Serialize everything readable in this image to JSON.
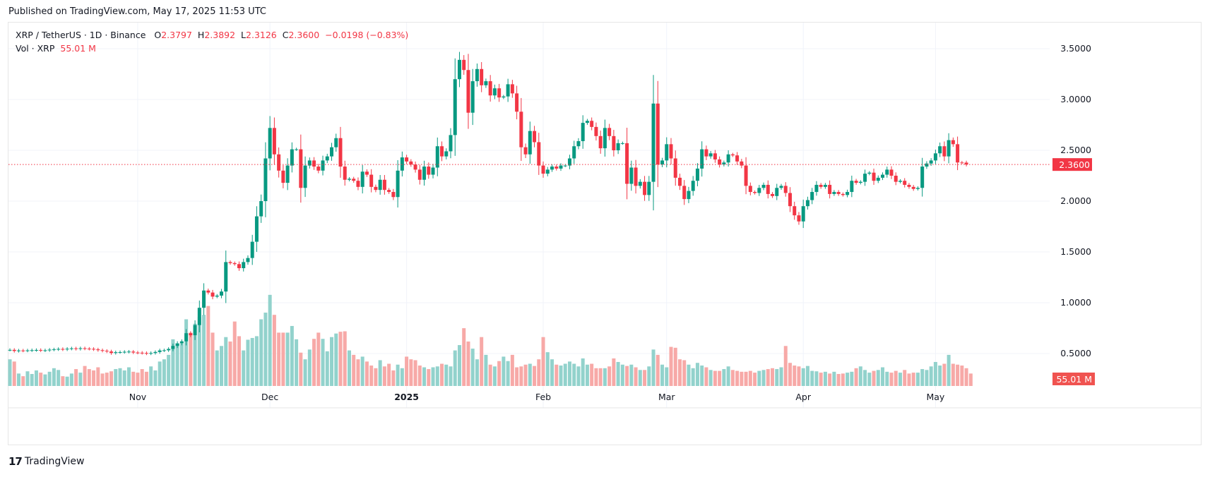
{
  "header": {
    "published": "Published on TradingView.com, May 17, 2025 11:53 UTC"
  },
  "legend": {
    "symbol": "XRP / TetherUS · 1D · Binance",
    "o_label": "O",
    "o_value": "2.3797",
    "h_label": "H",
    "h_value": "2.3892",
    "l_label": "L",
    "l_value": "2.3126",
    "c_label": "C",
    "c_value": "2.3600",
    "change": "−0.0198 (−0.83%)",
    "vol_label": "Vol · XRP",
    "vol_value": "55.01 M"
  },
  "footer": {
    "brand": "TradingView",
    "logo": "17"
  },
  "colors": {
    "up": "#089981",
    "down": "#f23645",
    "vol_up": "#92d2cc",
    "vol_down": "#f7a9a7",
    "grid": "#f0f3fa",
    "price_badge": "#f23645",
    "vol_badge": "#f05350"
  },
  "chart_data": {
    "type": "candlestick",
    "title": "XRP / TetherUS · 1D · Binance",
    "interval": "1D",
    "y_ticks": [
      "3.5000",
      "3.0000",
      "2.5000",
      "2.0000",
      "1.5000",
      "1.0000",
      "0.5000"
    ],
    "y_tick_values": [
      3.5,
      3.0,
      2.5,
      2.0,
      1.5,
      1.0,
      0.5
    ],
    "ylim": [
      0.35,
      3.6
    ],
    "x_ticks": [
      {
        "label": "Nov",
        "day": 29,
        "bold": false
      },
      {
        "label": "Dec",
        "day": 59,
        "bold": false
      },
      {
        "label": "2025",
        "day": 90,
        "bold": true
      },
      {
        "label": "Feb",
        "day": 121,
        "bold": false
      },
      {
        "label": "Mar",
        "day": 149,
        "bold": false
      },
      {
        "label": "Apr",
        "day": 180,
        "bold": false
      },
      {
        "label": "May",
        "day": 210,
        "bold": false
      }
    ],
    "last_price": "2.3600",
    "last_price_value": 2.36,
    "last_volume": "55.01 M",
    "closes": [
      0.536,
      0.525,
      0.53,
      0.528,
      0.531,
      0.533,
      0.535,
      0.53,
      0.532,
      0.538,
      0.541,
      0.545,
      0.54,
      0.547,
      0.551,
      0.545,
      0.552,
      0.548,
      0.546,
      0.541,
      0.533,
      0.527,
      0.52,
      0.505,
      0.513,
      0.514,
      0.517,
      0.519,
      0.51,
      0.508,
      0.505,
      0.5,
      0.505,
      0.515,
      0.53,
      0.532,
      0.545,
      0.575,
      0.6,
      0.62,
      0.7,
      0.68,
      0.78,
      0.95,
      1.12,
      1.1,
      1.06,
      1.07,
      1.11,
      1.4,
      1.39,
      1.38,
      1.34,
      1.4,
      1.44,
      1.6,
      1.85,
      2.0,
      2.42,
      2.72,
      2.46,
      2.3,
      2.18,
      2.35,
      2.51,
      2.51,
      2.13,
      2.35,
      2.4,
      2.34,
      2.3,
      2.4,
      2.44,
      2.53,
      2.62,
      2.34,
      2.21,
      2.22,
      2.2,
      2.14,
      2.29,
      2.26,
      2.14,
      2.11,
      2.21,
      2.11,
      2.09,
      2.04,
      2.3,
      2.43,
      2.39,
      2.36,
      2.31,
      2.21,
      2.34,
      2.26,
      2.33,
      2.54,
      2.44,
      2.49,
      2.65,
      3.2,
      3.39,
      3.29,
      2.87,
      3.18,
      3.3,
      3.14,
      3.18,
      3.04,
      3.11,
      3.02,
      3.03,
      3.15,
      3.06,
      2.88,
      2.53,
      2.46,
      2.69,
      2.58,
      2.35,
      2.27,
      2.31,
      2.34,
      2.32,
      2.35,
      2.35,
      2.42,
      2.54,
      2.59,
      2.77,
      2.79,
      2.73,
      2.64,
      2.52,
      2.72,
      2.64,
      2.5,
      2.57,
      2.57,
      2.17,
      2.33,
      2.15,
      2.19,
      2.06,
      2.19,
      2.96,
      2.36,
      2.4,
      2.56,
      2.42,
      2.23,
      2.15,
      2.02,
      2.1,
      2.2,
      2.32,
      2.51,
      2.44,
      2.47,
      2.41,
      2.36,
      2.38,
      2.46,
      2.45,
      2.39,
      2.35,
      2.15,
      2.09,
      2.08,
      2.13,
      2.16,
      2.07,
      2.05,
      2.13,
      2.15,
      2.08,
      1.95,
      1.86,
      1.8,
      1.95,
      2.01,
      2.09,
      2.16,
      2.14,
      2.16,
      2.07,
      2.09,
      2.07,
      2.06,
      2.09,
      2.2,
      2.18,
      2.19,
      2.27,
      2.28,
      2.2,
      2.23,
      2.26,
      2.31,
      2.25,
      2.19,
      2.2,
      2.16,
      2.14,
      2.12,
      2.13,
      2.34,
      2.37,
      2.4,
      2.47,
      2.54,
      2.44,
      2.6,
      2.56,
      2.38,
      2.379,
      2.36
    ],
    "volumes": [
      60,
      55,
      28,
      22,
      33,
      27,
      35,
      30,
      26,
      32,
      40,
      36,
      22,
      21,
      28,
      38,
      30,
      45,
      38,
      35,
      42,
      28,
      30,
      33,
      38,
      40,
      35,
      42,
      32,
      30,
      38,
      32,
      44,
      35,
      55,
      60,
      70,
      105,
      95,
      95,
      150,
      120,
      140,
      155,
      160,
      180,
      120,
      80,
      90,
      110,
      100,
      145,
      112,
      80,
      104,
      108,
      112,
      150,
      165,
      205,
      160,
      120,
      120,
      120,
      135,
      105,
      75,
      60,
      82,
      106,
      120,
      106,
      78,
      110,
      118,
      122,
      123,
      80,
      70,
      60,
      66,
      55,
      46,
      40,
      58,
      44,
      50,
      35,
      48,
      40,
      66,
      60,
      58,
      46,
      42,
      38,
      42,
      44,
      50,
      48,
      44,
      80,
      92,
      130,
      100,
      84,
      60,
      110,
      70,
      48,
      44,
      56,
      66,
      56,
      70,
      42,
      44,
      48,
      50,
      45,
      60,
      110,
      76,
      60,
      48,
      46,
      50,
      55,
      50,
      44,
      62,
      48,
      50,
      40,
      40,
      40,
      44,
      62,
      54,
      48,
      45,
      48,
      42,
      36,
      36,
      44,
      82,
      70,
      48,
      42,
      88,
      86,
      60,
      58,
      48,
      40,
      52,
      46,
      42,
      36,
      34,
      34,
      38,
      44,
      36,
      34,
      32,
      32,
      34,
      30,
      34,
      36,
      38,
      40,
      38,
      42,
      90,
      52,
      46,
      44,
      40,
      45,
      34,
      33,
      30,
      32,
      28,
      32,
      27,
      28,
      30,
      32,
      40,
      44,
      36,
      30,
      34,
      36,
      42,
      32,
      30,
      34,
      30,
      36,
      28,
      30,
      30,
      38,
      36,
      44,
      54,
      46,
      50,
      70,
      50,
      48,
      46,
      40,
      28
    ]
  }
}
